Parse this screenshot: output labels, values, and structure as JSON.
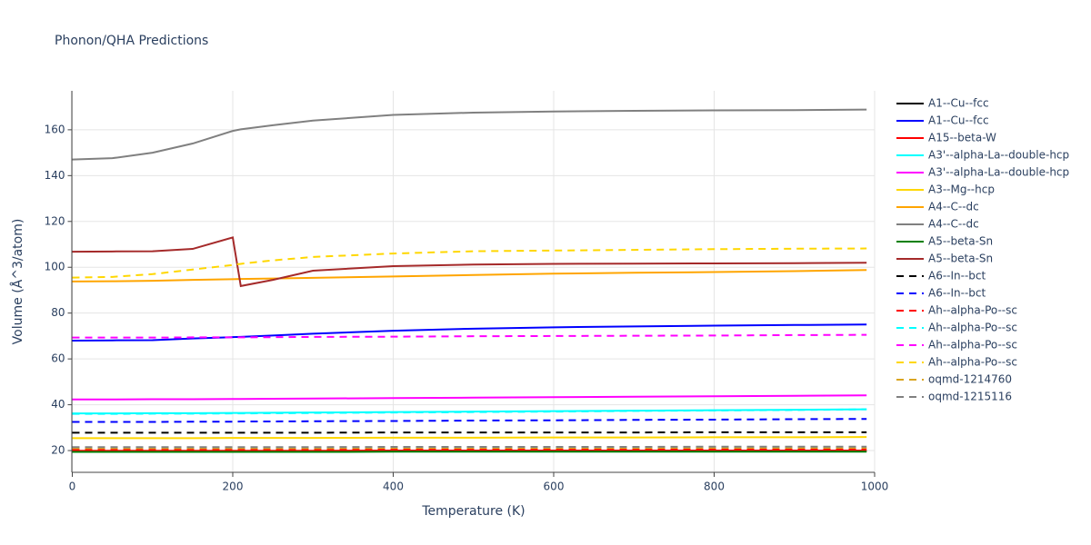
{
  "chart_data": {
    "type": "line",
    "title": "Phonon/QHA Predictions",
    "x_label": "Temperature (K)",
    "y_label": "Volume (Å^3/atom)",
    "x": [
      0,
      50,
      100,
      150,
      200,
      210,
      250,
      300,
      400,
      500,
      600,
      700,
      800,
      900,
      990
    ],
    "xlim": [
      0,
      1000
    ],
    "xticks": [
      0,
      200,
      400,
      600,
      800,
      1000
    ],
    "ylim": [
      10.5,
      177
    ],
    "yticks": [
      20,
      40,
      60,
      80,
      100,
      120,
      140,
      160
    ],
    "grid": true,
    "legend": "right",
    "series": [
      {
        "name": "A1--Cu--fcc",
        "color": "#000000",
        "dash": false,
        "values": [
          19.6,
          19.6,
          19.6,
          19.6,
          19.6,
          19.6,
          19.6,
          19.6,
          19.7,
          19.7,
          19.7,
          19.7,
          19.8,
          19.8,
          19.8
        ]
      },
      {
        "name": "A1--Cu--fcc",
        "color": "#0000ff",
        "dash": false,
        "values": [
          68,
          68.1,
          68.2,
          68.9,
          69.5,
          69.6,
          70.2,
          71,
          72.3,
          73.2,
          73.8,
          74.2,
          74.5,
          74.8,
          75
        ]
      },
      {
        "name": "A15--beta-W",
        "color": "#ff0000",
        "dash": false,
        "values": [
          19.9,
          19.9,
          19.9,
          19.9,
          19.9,
          19.9,
          19.9,
          19.9,
          20,
          20,
          20,
          20,
          20,
          20,
          20
        ]
      },
      {
        "name": "A3'--alpha-La--double-hcp",
        "color": "#00ffff",
        "dash": false,
        "values": [
          36.2,
          36.2,
          36.3,
          36.3,
          36.4,
          36.4,
          36.5,
          36.6,
          36.8,
          37,
          37.2,
          37.4,
          37.6,
          37.8,
          38
        ]
      },
      {
        "name": "A3'--alpha-La--double-hcp",
        "color": "#ff00ff",
        "dash": false,
        "values": [
          42.3,
          42.3,
          42.4,
          42.4,
          42.5,
          42.5,
          42.6,
          42.7,
          42.9,
          43.1,
          43.3,
          43.5,
          43.7,
          43.9,
          44.1
        ]
      },
      {
        "name": "A3--Mg--hcp",
        "color": "#ffd700",
        "dash": false,
        "values": [
          25.4,
          25.4,
          25.4,
          25.4,
          25.5,
          25.5,
          25.5,
          25.5,
          25.6,
          25.6,
          25.7,
          25.7,
          25.8,
          25.8,
          25.9
        ]
      },
      {
        "name": "A4--C--dc",
        "color": "#ffa500",
        "dash": false,
        "values": [
          93.8,
          93.9,
          94.1,
          94.5,
          94.8,
          94.9,
          95.1,
          95.4,
          96,
          96.6,
          97.2,
          97.6,
          97.9,
          98.3,
          98.8
        ]
      },
      {
        "name": "A4--C--dc",
        "color": "#808080",
        "dash": false,
        "values": [
          147,
          147.6,
          150,
          154,
          159.5,
          160.2,
          162,
          164,
          166.5,
          167.5,
          168,
          168.3,
          168.5,
          168.6,
          168.8
        ]
      },
      {
        "name": "A5--beta-Sn",
        "color": "#008000",
        "dash": false,
        "values": [
          19.4,
          19.4,
          19.4,
          19.4,
          19.4,
          19.4,
          19.4,
          19.4,
          19.5,
          19.5,
          19.5,
          19.5,
          19.5,
          19.5,
          19.5
        ]
      },
      {
        "name": "A5--beta-Sn",
        "color": "#a52a2a",
        "dash": false,
        "values": [
          106.8,
          106.9,
          107,
          108,
          113,
          91.8,
          94.5,
          98.5,
          100.5,
          101.2,
          101.5,
          101.6,
          101.7,
          101.8,
          102
        ]
      },
      {
        "name": "A6--In--bct",
        "color": "#000000",
        "dash": true,
        "values": [
          27.8,
          27.8,
          27.8,
          27.8,
          27.8,
          27.8,
          27.8,
          27.8,
          27.9,
          27.9,
          27.9,
          27.9,
          28,
          28,
          28
        ]
      },
      {
        "name": "A6--In--bct",
        "color": "#0000ff",
        "dash": true,
        "values": [
          32.5,
          32.5,
          32.5,
          32.6,
          32.6,
          32.7,
          32.7,
          32.8,
          32.9,
          33.1,
          33.2,
          33.4,
          33.5,
          33.7,
          33.8
        ]
      },
      {
        "name": "Ah--alpha-Po--sc",
        "color": "#ff0000",
        "dash": true,
        "values": [
          20.5,
          20.5,
          20.5,
          20.5,
          20.5,
          20.5,
          20.5,
          20.5,
          20.6,
          20.6,
          20.6,
          20.6,
          20.7,
          20.7,
          20.7
        ]
      },
      {
        "name": "Ah--alpha-Po--sc",
        "color": "#00ffff",
        "dash": true,
        "values": [
          36,
          36,
          36.1,
          36.1,
          36.2,
          36.2,
          36.3,
          36.4,
          36.6,
          36.8,
          37,
          37.3,
          37.5,
          37.7,
          38
        ]
      },
      {
        "name": "Ah--alpha-Po--sc",
        "color": "#ff00ff",
        "dash": true,
        "values": [
          69.3,
          69.3,
          69.3,
          69.4,
          69.4,
          69.4,
          69.5,
          69.6,
          69.7,
          69.9,
          70,
          70.1,
          70.2,
          70.4,
          70.5
        ]
      },
      {
        "name": "Ah--alpha-Po--sc",
        "color": "#ffd700",
        "dash": true,
        "values": [
          95.5,
          95.8,
          97,
          99,
          101,
          101.5,
          103,
          104.5,
          106,
          107,
          107.3,
          107.6,
          107.9,
          108.1,
          108.2
        ]
      },
      {
        "name": "oqmd-1214760",
        "color": "#daa520",
        "dash": true,
        "values": [
          21,
          21,
          21,
          21,
          21,
          21,
          21,
          21,
          21.1,
          21.1,
          21.1,
          21.1,
          21.2,
          21.2,
          21.2
        ]
      },
      {
        "name": "oqmd-1215116",
        "color": "#808080",
        "dash": true,
        "values": [
          21.5,
          21.5,
          21.5,
          21.5,
          21.5,
          21.5,
          21.5,
          21.5,
          21.6,
          21.6,
          21.6,
          21.6,
          21.7,
          21.7,
          21.7
        ]
      }
    ]
  }
}
